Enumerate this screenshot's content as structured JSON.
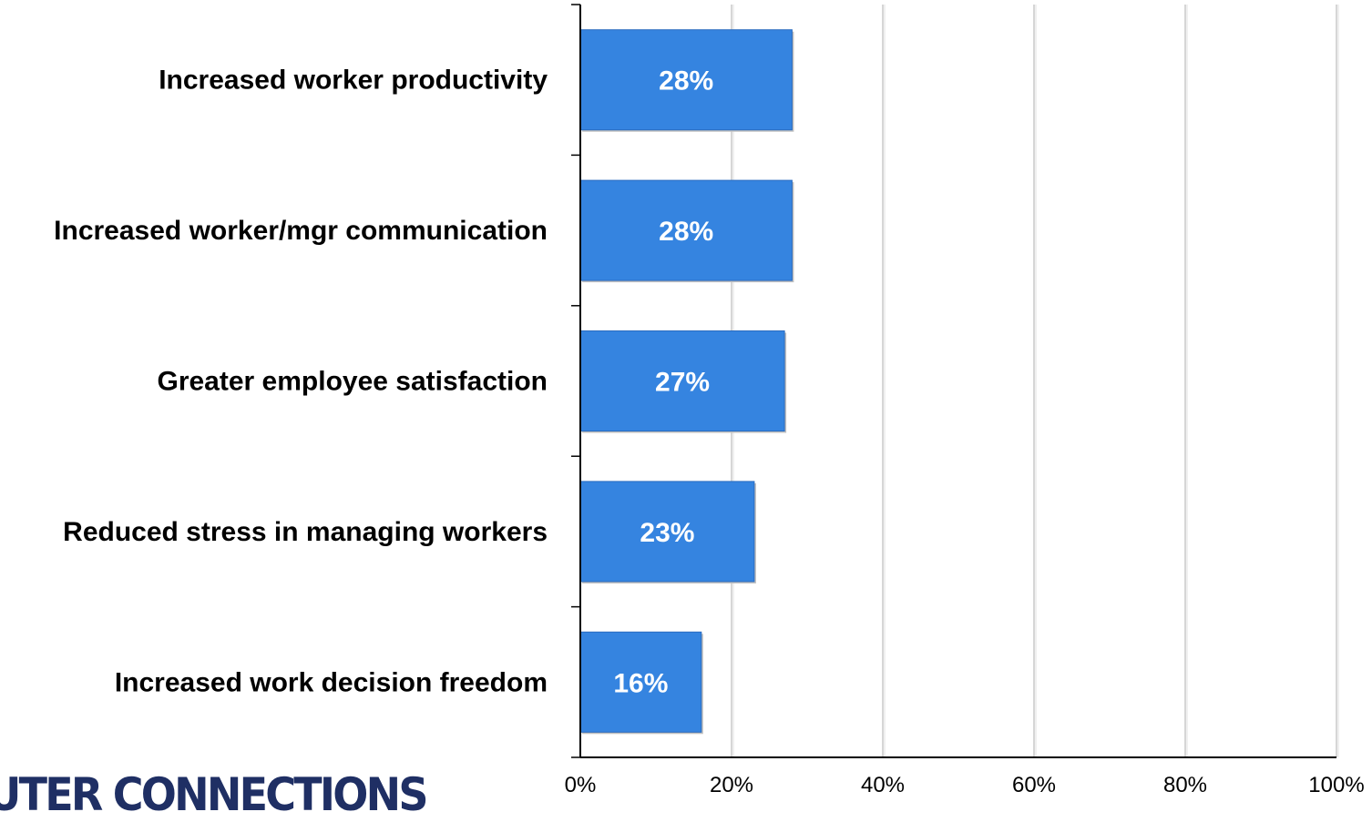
{
  "chart_data": {
    "type": "bar",
    "orientation": "horizontal",
    "categories": [
      "Increased worker productivity",
      "Increased worker/mgr communication",
      "Greater employee satisfaction",
      "Reduced stress in managing workers",
      "Increased work decision freedom"
    ],
    "values": [
      28,
      28,
      27,
      23,
      16
    ],
    "value_labels": [
      "28%",
      "28%",
      "27%",
      "23%",
      "16%"
    ],
    "xlim": [
      0,
      100
    ],
    "x_ticks": [
      "0%",
      "20%",
      "40%",
      "60%",
      "80%",
      "100%"
    ],
    "grid": "vertical",
    "bar_color": "#3584e0",
    "title": "",
    "xlabel": "",
    "ylabel": ""
  },
  "logo": {
    "text": "UTER CONNECTIONS",
    "color": "#1f2f64"
  }
}
